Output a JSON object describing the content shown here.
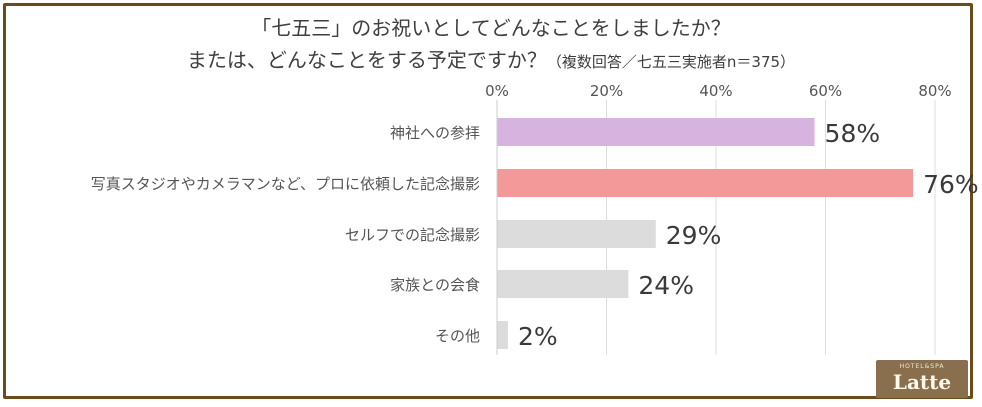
{
  "title_line1": "「七五三」のお祝いとしてどんなことをしましたか？",
  "title_line2": "または、どんなことをする予定ですか？",
  "title_note": "（複数回答／七五三実施者n＝375）",
  "logo": {
    "sub": "HOTEL&SPA",
    "main": "Latte"
  },
  "colors": {
    "frame": "#6b4a1c",
    "bar_purple": "#d7b3e0",
    "bar_pink": "#f3999a",
    "bar_grey": "#dcdcdc"
  },
  "chart_data": {
    "type": "bar",
    "orientation": "horizontal",
    "categories": [
      "神社への参拝",
      "写真スタジオやカメラマンなど、プロに依頼した記念撮影",
      "セルフでの記念撮影",
      "家族との会食",
      "その他"
    ],
    "values": [
      58,
      76,
      29,
      24,
      2
    ],
    "value_labels": [
      "58%",
      "76%",
      "29%",
      "24%",
      "2%"
    ],
    "bar_colors": [
      "#d7b3e0",
      "#f3999a",
      "#dcdcdc",
      "#dcdcdc",
      "#dcdcdc"
    ],
    "xlim": [
      0,
      80
    ],
    "xticks": [
      "0%",
      "20%",
      "40%",
      "60%",
      "80%"
    ],
    "grid": true
  }
}
